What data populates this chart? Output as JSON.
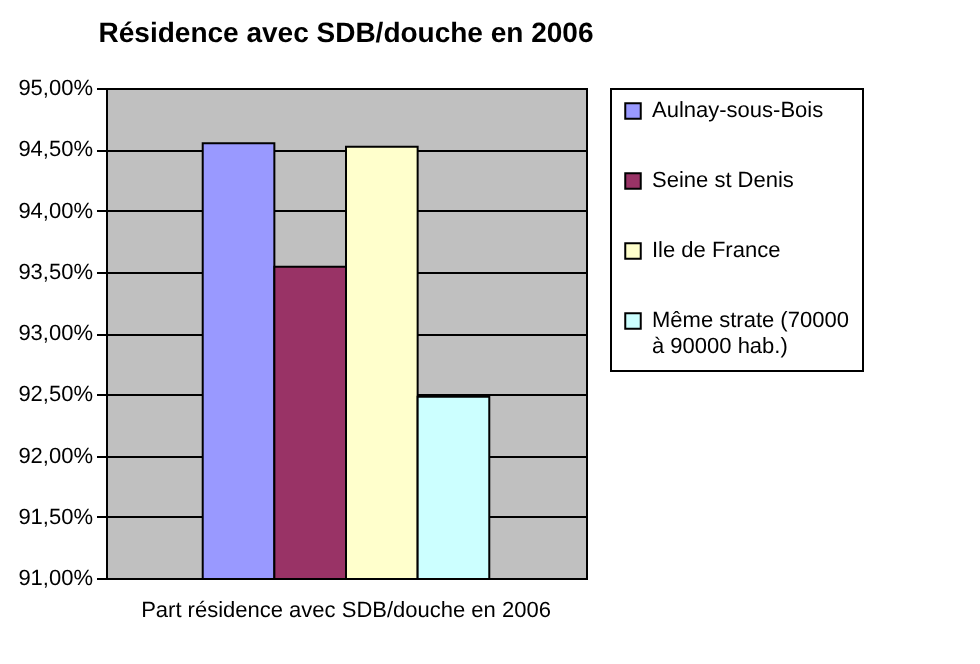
{
  "chart_data": {
    "type": "bar",
    "title": "Résidence avec SDB/douche en 2006",
    "categories": [
      "Part résidence avec SDB/douche en 2006"
    ],
    "series": [
      {
        "name": "Aulnay-sous-Bois",
        "color": "#9999ff",
        "values": [
          94.55
        ]
      },
      {
        "name": "Seine st Denis",
        "color": "#993366",
        "values": [
          93.54
        ]
      },
      {
        "name": "Ile de France",
        "color": "#ffffcc",
        "values": [
          94.52
        ]
      },
      {
        "name": "Même strate (70000 à 90000 hab.)",
        "color": "#ccffff",
        "values": [
          92.48
        ]
      }
    ],
    "ylim": [
      91,
      95
    ],
    "yticks": [
      {
        "value": 91,
        "label": "91,00%"
      },
      {
        "value": 91.5,
        "label": "91,50%"
      },
      {
        "value": 92,
        "label": "92,00%"
      },
      {
        "value": 92.5,
        "label": "92,50%"
      },
      {
        "value": 93,
        "label": "93,00%"
      },
      {
        "value": 93.5,
        "label": "93,50%"
      },
      {
        "value": 94,
        "label": "94,00%"
      },
      {
        "value": 94.5,
        "label": "94,50%"
      },
      {
        "value": 95,
        "label": "95,00%"
      }
    ],
    "grid": "y",
    "legend": "right"
  }
}
